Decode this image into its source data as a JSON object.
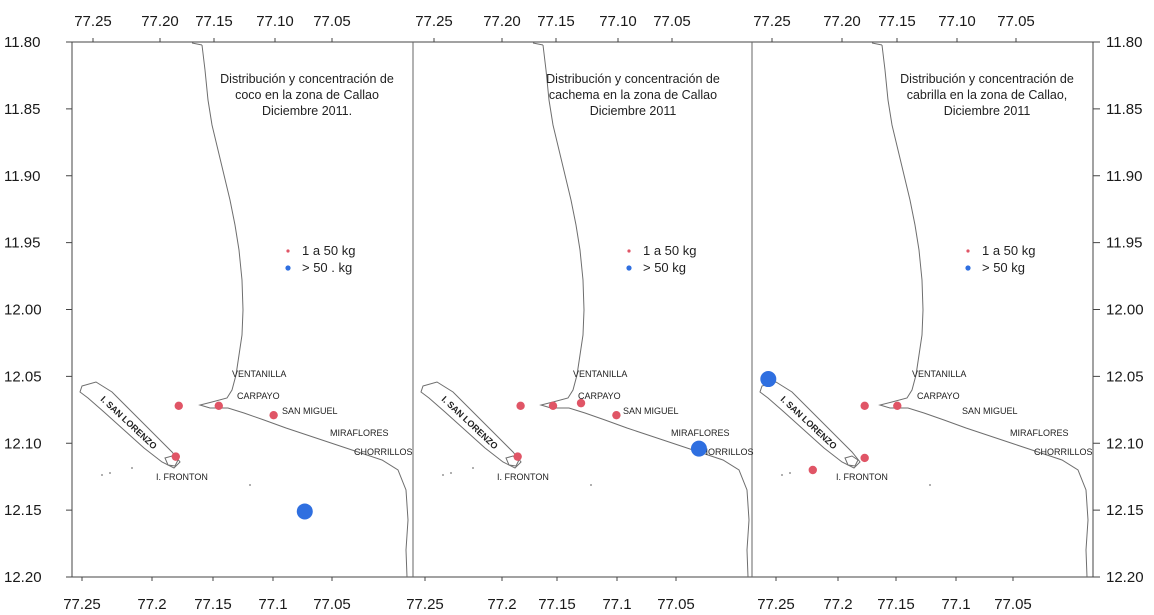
{
  "axes": {
    "top_ticks": [
      "77.25",
      "77.20",
      "77.15",
      "77.10",
      "77.05"
    ],
    "bottom_ticks": [
      "77.25",
      "77.2",
      "77.15",
      "77.1",
      "77.05"
    ],
    "bottom_ticks_last": [
      "77.25",
      "77.2",
      "77.15",
      "77.1",
      "77.05"
    ],
    "left_ticks": [
      "11.80",
      "11.85",
      "11.90",
      "11.95",
      "12.00",
      "12.05",
      "12.10",
      "12.15",
      "12.20"
    ],
    "right_ticks": [
      "11.80",
      "11.85",
      "11.90",
      "11.95",
      "12.00",
      "12.05",
      "12.10",
      "12.15",
      "12.20"
    ]
  },
  "panels": [
    {
      "title": [
        "Distribución y concentración de",
        "coco  en la zona de Callao",
        "Diciembre 2011."
      ],
      "legend": [
        {
          "range": "1  a  50  kg",
          "color": "#e05566"
        },
        {
          "range": ">  50    .  kg",
          "color": "#2f6fe0"
        }
      ],
      "catches": [
        {
          "lon": 77.188,
          "lat": 12.072,
          "class": "small"
        },
        {
          "lon": 77.161,
          "lat": 12.072,
          "class": "small"
        },
        {
          "lon": 77.124,
          "lat": 12.079,
          "class": "small"
        },
        {
          "lon": 77.19,
          "lat": 12.11,
          "class": "small"
        },
        {
          "lon": 77.103,
          "lat": 12.151,
          "class": "large"
        }
      ]
    },
    {
      "title": [
        "Distribución y concentración de",
        "cachema  en la zona de  Callao",
        "Diciembre 2011"
      ],
      "legend": [
        {
          "range": "1  a  50  kg",
          "color": "#e05566"
        },
        {
          "range": ">  50         kg",
          "color": "#2f6fe0"
        }
      ],
      "catches": [
        {
          "lon": 77.187,
          "lat": 12.072,
          "class": "small"
        },
        {
          "lon": 77.165,
          "lat": 12.072,
          "class": "small"
        },
        {
          "lon": 77.146,
          "lat": 12.07,
          "class": "small"
        },
        {
          "lon": 77.122,
          "lat": 12.079,
          "class": "small"
        },
        {
          "lon": 77.189,
          "lat": 12.11,
          "class": "small"
        },
        {
          "lon": 77.066,
          "lat": 12.104,
          "class": "large"
        }
      ]
    },
    {
      "title": [
        "Distribución y concentración de",
        "cabrilla  en la zona de Callao,",
        "Diciembre 2011"
      ],
      "legend": [
        {
          "range": "1  a  50  kg",
          "color": "#e05566"
        },
        {
          "range": ">  50         kg",
          "color": "#2f6fe0"
        }
      ],
      "catches": [
        {
          "lon": 77.249,
          "lat": 12.052,
          "class": "large"
        },
        {
          "lon": 77.184,
          "lat": 12.072,
          "class": "small"
        },
        {
          "lon": 77.162,
          "lat": 12.072,
          "class": "small"
        },
        {
          "lon": 77.184,
          "lat": 12.111,
          "class": "small"
        },
        {
          "lon": 77.219,
          "lat": 12.12,
          "class": "small"
        }
      ]
    }
  ],
  "places": {
    "ventanilla": "VENTANILLA",
    "carpayo": "CARPAYO",
    "san_miguel": "SAN MIGUEL",
    "miraflores": "MIRAFLORES",
    "chorrillos": "CHORRILLOS",
    "fronton": "I. FRONTON",
    "san_lorenzo": "I. SAN LORENZO"
  }
}
